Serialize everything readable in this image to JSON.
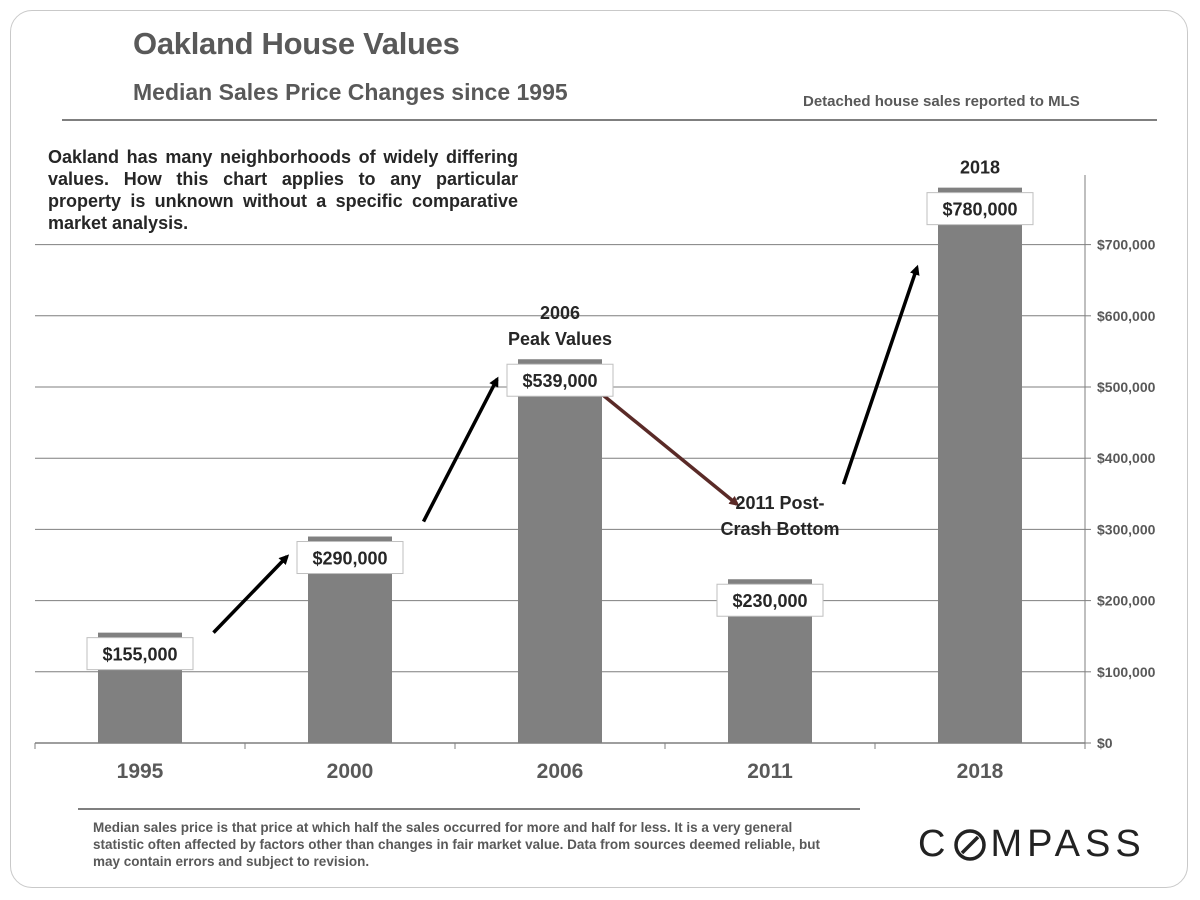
{
  "header": {
    "title": "Oakland House Values",
    "subtitle": "Median Sales Price Changes since 1995",
    "source_note": "Detached house sales reported to MLS"
  },
  "note": "Oakland has many neighborhoods of widely differing values. How this chart applies to any particular property is unknown without a specific comparative market analysis.",
  "footer": {
    "disclaimer": "Median sales price is that price at which half the sales occurred for more and half for less. It is a very general statistic often affected by factors other than changes in fair market value. Data from sources deemed reliable, but may contain errors and subject to revision.",
    "logo_text_before": "C",
    "logo_text_after": "MPASS"
  },
  "colors": {
    "bar": "#808080",
    "text_dark": "#262626",
    "text_gray": "#595959",
    "arrow_up": "#000000",
    "arrow_down": "#5a2a27",
    "grid": "#7f7f7f"
  },
  "chart_data": {
    "type": "bar",
    "categories": [
      "1995",
      "2000",
      "2006",
      "2011",
      "2018"
    ],
    "values": [
      155000,
      290000,
      539000,
      230000,
      780000
    ],
    "value_labels": [
      "$155,000",
      "$290,000",
      "$539,000",
      "$230,000",
      "$780,000"
    ],
    "ylim": [
      0,
      800000
    ],
    "y_axis_position": "right",
    "y_ticks": [
      0,
      100000,
      200000,
      300000,
      400000,
      500000,
      600000,
      700000
    ],
    "y_tick_labels": [
      "$0",
      "$100,000",
      "$200,000",
      "$300,000",
      "$400,000",
      "$500,000",
      "$600,000",
      "$700,000"
    ],
    "grid": true,
    "annotations": [
      {
        "category": "2006",
        "lines": [
          "2006",
          "Peak Values"
        ]
      },
      {
        "category": "2011",
        "lines": [
          "2011 Post-",
          "Crash Bottom"
        ]
      },
      {
        "category": "2018",
        "lines": [
          "2018"
        ]
      }
    ],
    "arrows": [
      {
        "from": "1995",
        "to": "2000",
        "direction": "up"
      },
      {
        "from": "2000",
        "to": "2006",
        "direction": "up"
      },
      {
        "from": "2006",
        "to": "2011",
        "direction": "down"
      },
      {
        "from": "2011",
        "to": "2018",
        "direction": "up"
      }
    ]
  }
}
